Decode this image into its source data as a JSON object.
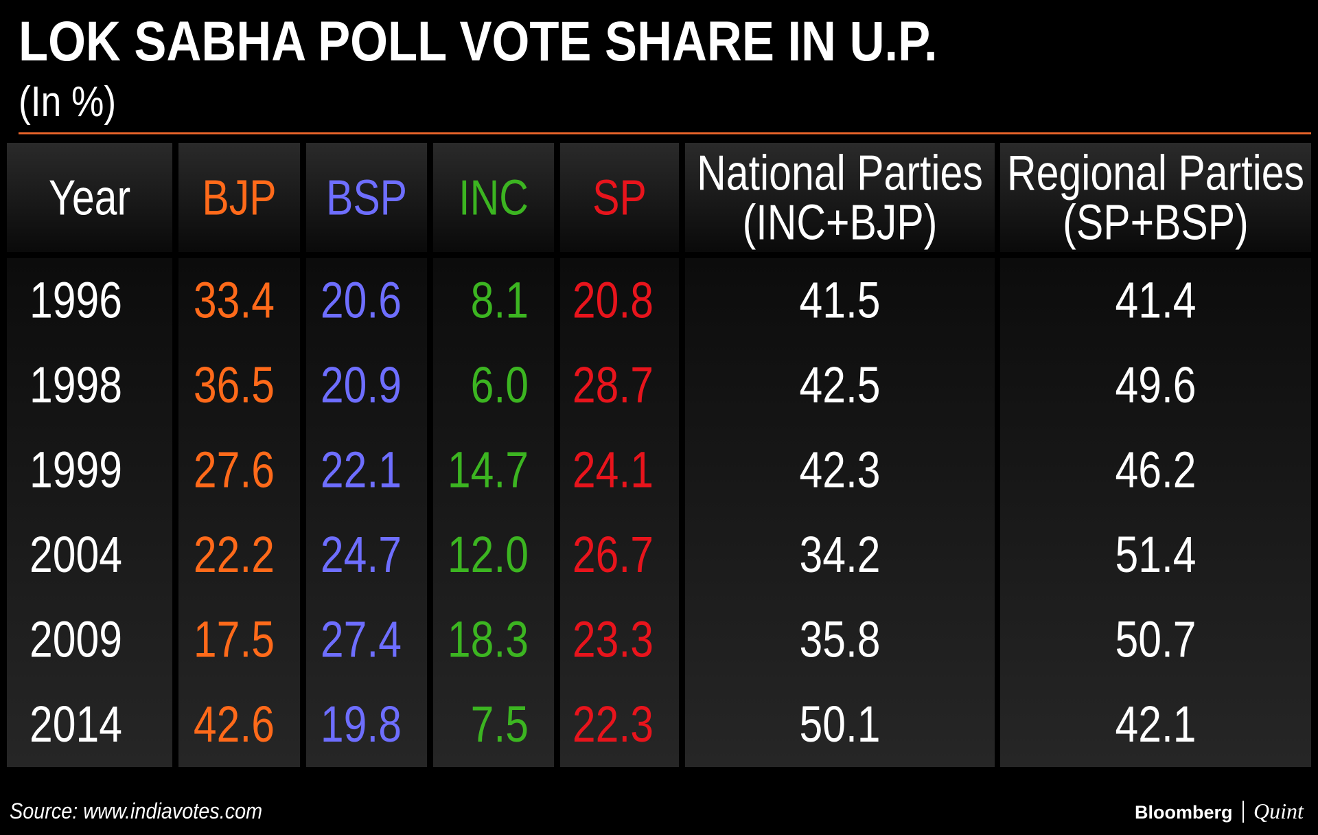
{
  "header": {
    "title": "LOK SABHA POLL VOTE SHARE IN U.P.",
    "subtitle": "(In %)"
  },
  "table": {
    "columns": [
      [
        "Year"
      ],
      [
        "BJP"
      ],
      [
        "BSP"
      ],
      [
        "INC"
      ],
      [
        "SP"
      ],
      [
        "National Parties",
        "(INC+BJP)"
      ],
      [
        "Regional Parties",
        "(SP+BSP)"
      ]
    ],
    "rows": [
      [
        "1996",
        "33.4",
        "20.6",
        "8.1",
        "20.8",
        "41.5",
        "41.4"
      ],
      [
        "1998",
        "36.5",
        "20.9",
        "6.0",
        "28.7",
        "42.5",
        "49.6"
      ],
      [
        "1999",
        "27.6",
        "22.1",
        "14.7",
        "24.1",
        "42.3",
        "46.2"
      ],
      [
        "2004",
        "22.2",
        "24.7",
        "12.0",
        "26.7",
        "34.2",
        "51.4"
      ],
      [
        "2009",
        "17.5",
        "27.4",
        "18.3",
        "23.3",
        "35.8",
        "50.7"
      ],
      [
        "2014",
        "42.6",
        "19.8",
        "7.5",
        "22.3",
        "50.1",
        "42.1"
      ]
    ]
  },
  "footer": {
    "source": "Source: www.indiavotes.com",
    "brand": "Bloomberg",
    "brand2": "Quint"
  }
}
